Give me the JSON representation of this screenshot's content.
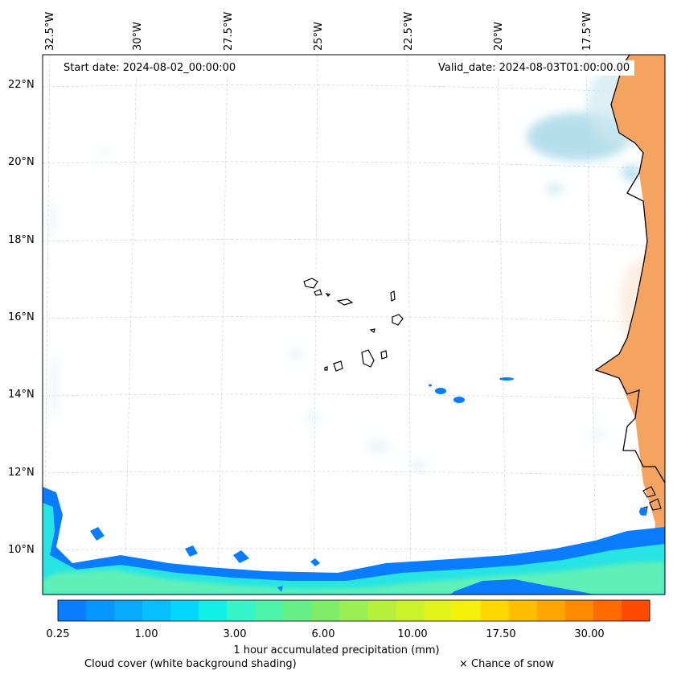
{
  "longitude_labels": [
    "32.5°W",
    "30°W",
    "27.5°W",
    "25°W",
    "22.5°W",
    "20°W",
    "17.5°W"
  ],
  "latitude_labels": [
    "22°N",
    "20°N",
    "18°N",
    "16°N",
    "14°N",
    "12°N",
    "10°N"
  ],
  "start_date": "Start date: 2024-08-02_00:00:00",
  "valid_date": "Valid_date: 2024-08-03T01:00:00.00",
  "colorbar": {
    "tick_labels": [
      "0.25",
      "1.00",
      "3.00",
      "6.00",
      "10.00",
      "17.50",
      "30.00"
    ],
    "title": "1 hour accumulated precipitation (mm)",
    "colors": [
      "#0a7cff",
      "#0795ff",
      "#06aaff",
      "#05bfff",
      "#03d6ff",
      "#12f0e6",
      "#36f5c8",
      "#4ef3a8",
      "#66ee88",
      "#80ec6a",
      "#9aef52",
      "#b4f03c",
      "#ccf22a",
      "#e2f41a",
      "#f4f008",
      "#ffd800",
      "#ffbf00",
      "#ffa500",
      "#ff8a00",
      "#ff6a00",
      "#ff4a00"
    ]
  },
  "legend": {
    "cloud_cover": "Cloud cover (white background shading)",
    "snow": "× Chance of snow"
  },
  "colors": {
    "land": "#f4a460",
    "precip_core": "#0a7cff",
    "precip_mid": "#27e3e3",
    "precip_light": "#6ff0a0",
    "cloud_light": "#a8d8e8"
  }
}
